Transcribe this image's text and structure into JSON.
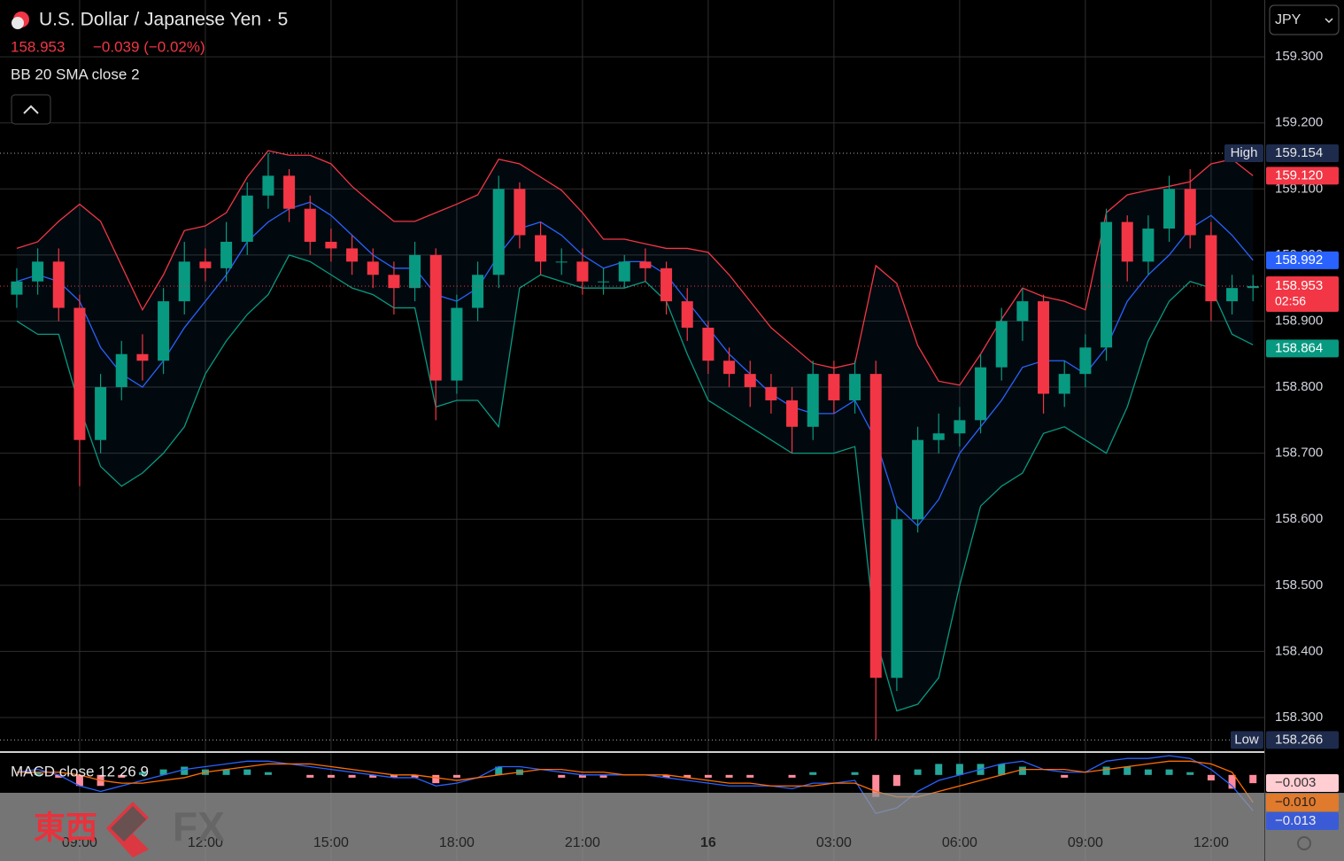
{
  "chart_data": {
    "type": "candlestick",
    "title": "U.S. Dollar / Japanese Yen · 5",
    "change": "−0.039 (−0.02%)",
    "indicator": "BB 20 SMA close 2",
    "currency": "JPY",
    "countdown": "02:56",
    "xlim": [
      7.1,
      37.27
    ],
    "xticks": [
      {
        "value": 9,
        "label": "09:00"
      },
      {
        "value": 12,
        "label": "12:00"
      },
      {
        "value": 15,
        "label": "15:00"
      },
      {
        "value": 18,
        "label": "18:00"
      },
      {
        "value": 21,
        "label": "21:00"
      },
      {
        "value": 24,
        "label": "16"
      },
      {
        "value": 27,
        "label": "03:00"
      },
      {
        "value": 30,
        "label": "06:00"
      },
      {
        "value": 33,
        "label": "09:00"
      },
      {
        "value": 36,
        "label": "12:00"
      }
    ],
    "ylim": [
      158.249,
      159.386
    ],
    "yticks": [
      {
        "value": 158.3,
        "label": "158.300"
      },
      {
        "value": 158.4,
        "label": "158.400"
      },
      {
        "value": 158.5,
        "label": "158.500"
      },
      {
        "value": 158.6,
        "label": "158.600"
      },
      {
        "value": 158.7,
        "label": "158.700"
      },
      {
        "value": 158.8,
        "label": "158.800"
      },
      {
        "value": 158.9,
        "label": "158.900"
      },
      {
        "value": 159.0,
        "label": "159.000"
      },
      {
        "value": 159.1,
        "label": "159.100"
      },
      {
        "value": 159.2,
        "label": "159.200"
      },
      {
        "value": 159.3,
        "label": "159.300"
      }
    ],
    "grid": true,
    "up_color": "#089981",
    "down_color": "#f23645",
    "x": [
      7.5,
      8,
      8.5,
      9,
      9.5,
      10,
      10.5,
      11,
      11.5,
      12,
      12.5,
      13,
      13.5,
      14,
      14.5,
      15,
      15.5,
      16,
      16.5,
      17,
      17.5,
      18,
      18.5,
      19,
      19.5,
      20,
      20.5,
      21,
      21.5,
      22,
      22.5,
      23,
      23.5,
      24,
      24.5,
      25,
      25.5,
      26,
      26.5,
      27,
      27.5,
      28,
      28.5,
      29,
      29.5,
      30,
      30.5,
      31,
      31.5,
      32,
      32.5,
      33,
      33.5,
      34,
      34.5,
      35,
      35.5,
      36,
      36.5,
      37
    ],
    "open": [
      158.94,
      158.96,
      158.99,
      158.92,
      158.72,
      158.8,
      158.85,
      158.84,
      158.93,
      158.99,
      158.98,
      159.02,
      159.09,
      159.12,
      159.07,
      159.02,
      159.01,
      158.99,
      158.97,
      158.95,
      159.0,
      158.81,
      158.92,
      158.97,
      159.1,
      159.03,
      158.99,
      158.99,
      158.96,
      158.96,
      158.99,
      158.98,
      158.93,
      158.89,
      158.84,
      158.82,
      158.8,
      158.78,
      158.74,
      158.82,
      158.78,
      158.82,
      158.36,
      158.6,
      158.72,
      158.73,
      158.75,
      158.83,
      158.9,
      158.93,
      158.79,
      158.82,
      158.86,
      159.05,
      158.99,
      159.04,
      159.1,
      159.03,
      158.93,
      158.95
    ],
    "high": [
      158.98,
      159.01,
      159.01,
      158.94,
      158.82,
      158.87,
      158.88,
      158.95,
      159.02,
      159.01,
      159.05,
      159.11,
      159.154,
      159.13,
      159.09,
      159.04,
      159.03,
      159.01,
      158.99,
      159.02,
      159.01,
      158.94,
      158.99,
      159.12,
      159.11,
      159.05,
      159.01,
      159.01,
      158.98,
      159.0,
      159.01,
      158.99,
      158.95,
      158.9,
      158.86,
      158.84,
      158.82,
      158.8,
      158.84,
      158.84,
      158.84,
      158.84,
      158.62,
      158.74,
      158.76,
      158.77,
      158.85,
      158.92,
      158.95,
      158.94,
      158.84,
      158.88,
      159.07,
      159.06,
      159.06,
      159.12,
      159.13,
      159.05,
      158.97,
      158.97
    ],
    "low": [
      158.92,
      158.94,
      158.9,
      158.65,
      158.7,
      158.78,
      158.81,
      158.82,
      158.91,
      158.96,
      158.96,
      159.0,
      159.07,
      159.05,
      159.0,
      158.99,
      158.97,
      158.95,
      158.91,
      158.93,
      158.75,
      158.79,
      158.9,
      158.95,
      159.01,
      158.97,
      158.97,
      158.94,
      158.94,
      158.95,
      158.96,
      158.91,
      158.87,
      158.82,
      158.8,
      158.77,
      158.76,
      158.7,
      158.72,
      158.76,
      158.76,
      158.266,
      158.34,
      158.58,
      158.7,
      158.71,
      158.73,
      158.81,
      158.87,
      158.76,
      158.77,
      158.8,
      158.84,
      158.96,
      158.97,
      159.02,
      159.01,
      158.9,
      158.91,
      158.93
    ],
    "close": [
      158.96,
      158.99,
      158.92,
      158.72,
      158.8,
      158.85,
      158.84,
      158.93,
      158.99,
      158.98,
      159.02,
      159.09,
      159.12,
      159.07,
      159.02,
      159.01,
      158.99,
      158.97,
      158.95,
      159.0,
      158.81,
      158.92,
      158.97,
      159.1,
      159.03,
      158.99,
      158.99,
      158.96,
      158.96,
      158.99,
      158.98,
      158.93,
      158.89,
      158.84,
      158.82,
      158.8,
      158.78,
      158.74,
      158.82,
      158.78,
      158.82,
      158.36,
      158.6,
      158.72,
      158.73,
      158.75,
      158.83,
      158.9,
      158.93,
      158.79,
      158.82,
      158.86,
      159.05,
      158.99,
      159.04,
      159.1,
      159.03,
      158.93,
      158.95,
      158.953
    ],
    "high_marker": {
      "text": "High",
      "label": "159.154"
    },
    "low_marker": {
      "text": "Low",
      "label": "158.266"
    },
    "bb": {
      "upper": {
        "color": "#f23645",
        "last_label": "159.120",
        "values": [
          159.01,
          159.02,
          159.051,
          159.077,
          159.051,
          158.984,
          158.917,
          158.97,
          159.037,
          159.044,
          159.064,
          159.118,
          159.158,
          159.151,
          159.151,
          159.138,
          159.104,
          159.077,
          159.051,
          159.051,
          159.064,
          159.077,
          159.091,
          159.145,
          159.138,
          159.118,
          159.098,
          159.064,
          159.024,
          159.024,
          159.017,
          159.01,
          159.01,
          159.004,
          158.97,
          158.93,
          158.89,
          158.863,
          158.836,
          158.829,
          158.836,
          158.984,
          158.957,
          158.863,
          158.809,
          158.803,
          158.85,
          158.903,
          158.95,
          158.937,
          158.93,
          158.917,
          159.064,
          159.091,
          159.098,
          159.104,
          159.111,
          159.138,
          159.145,
          159.12
        ]
      },
      "basis": {
        "color": "#2962ff",
        "last_label": "158.992",
        "values": [
          158.96,
          158.97,
          158.96,
          158.93,
          158.86,
          158.82,
          158.8,
          158.84,
          158.89,
          158.93,
          158.97,
          159.02,
          159.05,
          159.07,
          159.08,
          159.06,
          159.03,
          159.0,
          158.98,
          158.98,
          158.94,
          158.93,
          158.95,
          159.0,
          159.04,
          159.05,
          159.03,
          159.0,
          158.98,
          158.99,
          158.99,
          158.97,
          158.93,
          158.89,
          158.85,
          158.82,
          158.79,
          158.77,
          158.76,
          158.76,
          158.78,
          158.72,
          158.62,
          158.59,
          158.63,
          158.7,
          158.74,
          158.78,
          158.83,
          158.84,
          158.84,
          158.82,
          158.86,
          158.93,
          158.97,
          159.0,
          159.04,
          159.06,
          159.03,
          158.992
        ]
      },
      "lower": {
        "color": "#089981",
        "last_label": "158.864",
        "values": [
          158.9,
          158.88,
          158.88,
          158.77,
          158.68,
          158.65,
          158.67,
          158.7,
          158.74,
          158.82,
          158.87,
          158.91,
          158.94,
          159.0,
          158.99,
          158.97,
          158.95,
          158.94,
          158.92,
          158.92,
          158.77,
          158.78,
          158.78,
          158.74,
          158.95,
          158.97,
          158.96,
          158.95,
          158.95,
          158.95,
          158.96,
          158.93,
          158.85,
          158.78,
          158.76,
          158.74,
          158.72,
          158.7,
          158.7,
          158.7,
          158.71,
          158.42,
          158.31,
          158.32,
          158.36,
          158.5,
          158.62,
          158.65,
          158.67,
          158.73,
          158.74,
          158.72,
          158.7,
          158.77,
          158.87,
          158.93,
          158.96,
          158.95,
          158.88,
          158.864
        ]
      }
    },
    "macd": {
      "title": "MACD close 12 26 9",
      "ylim": [
        -0.021,
        0.008
      ],
      "macd": {
        "color": "#2962ff",
        "last_label": "−0.013",
        "values": [
          0.001,
          0.002,
          0.0,
          -0.004,
          -0.006,
          -0.004,
          -0.002,
          0.0,
          0.002,
          0.003,
          0.004,
          0.005,
          0.005,
          0.004,
          0.003,
          0.002,
          0.001,
          0.0,
          -0.001,
          -0.001,
          -0.004,
          -0.003,
          -0.001,
          0.003,
          0.003,
          0.002,
          0.001,
          0.0,
          0.0,
          0.0,
          0.0,
          -0.001,
          -0.002,
          -0.003,
          -0.004,
          -0.004,
          -0.004,
          -0.005,
          -0.003,
          -0.003,
          -0.002,
          -0.014,
          -0.012,
          -0.006,
          -0.002,
          0.0,
          0.002,
          0.004,
          0.005,
          0.002,
          0.001,
          0.001,
          0.005,
          0.006,
          0.006,
          0.007,
          0.006,
          0.002,
          -0.004,
          -0.013
        ]
      },
      "signal": {
        "color": "#ff6d00",
        "last_label": "−0.010",
        "values": [
          0.001,
          0.001,
          0.001,
          0.0,
          -0.002,
          -0.003,
          -0.003,
          -0.002,
          -0.001,
          0.001,
          0.002,
          0.003,
          0.004,
          0.004,
          0.004,
          0.003,
          0.002,
          0.001,
          0.0,
          0.0,
          -0.001,
          -0.002,
          -0.001,
          0.0,
          0.001,
          0.002,
          0.002,
          0.001,
          0.001,
          0.0,
          0.0,
          0.0,
          -0.001,
          -0.002,
          -0.003,
          -0.003,
          -0.004,
          -0.004,
          -0.004,
          -0.003,
          -0.003,
          -0.006,
          -0.008,
          -0.008,
          -0.006,
          -0.004,
          -0.002,
          0.0,
          0.002,
          0.002,
          0.002,
          0.001,
          0.002,
          0.003,
          0.004,
          0.005,
          0.005,
          0.004,
          0.001,
          -0.01
        ]
      },
      "histogram": {
        "up_color": "#26a69a",
        "down_color": "#ff8a9a",
        "last_label": "−0.003",
        "values": [
          0.0,
          0.001,
          -0.001,
          -0.004,
          -0.004,
          -0.001,
          0.001,
          0.002,
          0.003,
          0.002,
          0.002,
          0.002,
          0.001,
          0.0,
          -0.001,
          -0.001,
          -0.001,
          -0.001,
          -0.001,
          -0.001,
          -0.003,
          -0.001,
          0.0,
          0.003,
          0.002,
          0.0,
          -0.001,
          -0.001,
          -0.001,
          0.0,
          0.0,
          -0.001,
          -0.001,
          -0.001,
          -0.001,
          -0.001,
          0.0,
          -0.001,
          0.001,
          0.0,
          0.001,
          -0.008,
          -0.004,
          0.002,
          0.004,
          0.004,
          0.004,
          0.004,
          0.003,
          0.0,
          -0.001,
          0.0,
          0.003,
          0.003,
          0.002,
          0.002,
          0.001,
          -0.002,
          -0.005,
          -0.003
        ]
      }
    },
    "watermark": {
      "left": "東西",
      "right": "FX"
    }
  }
}
